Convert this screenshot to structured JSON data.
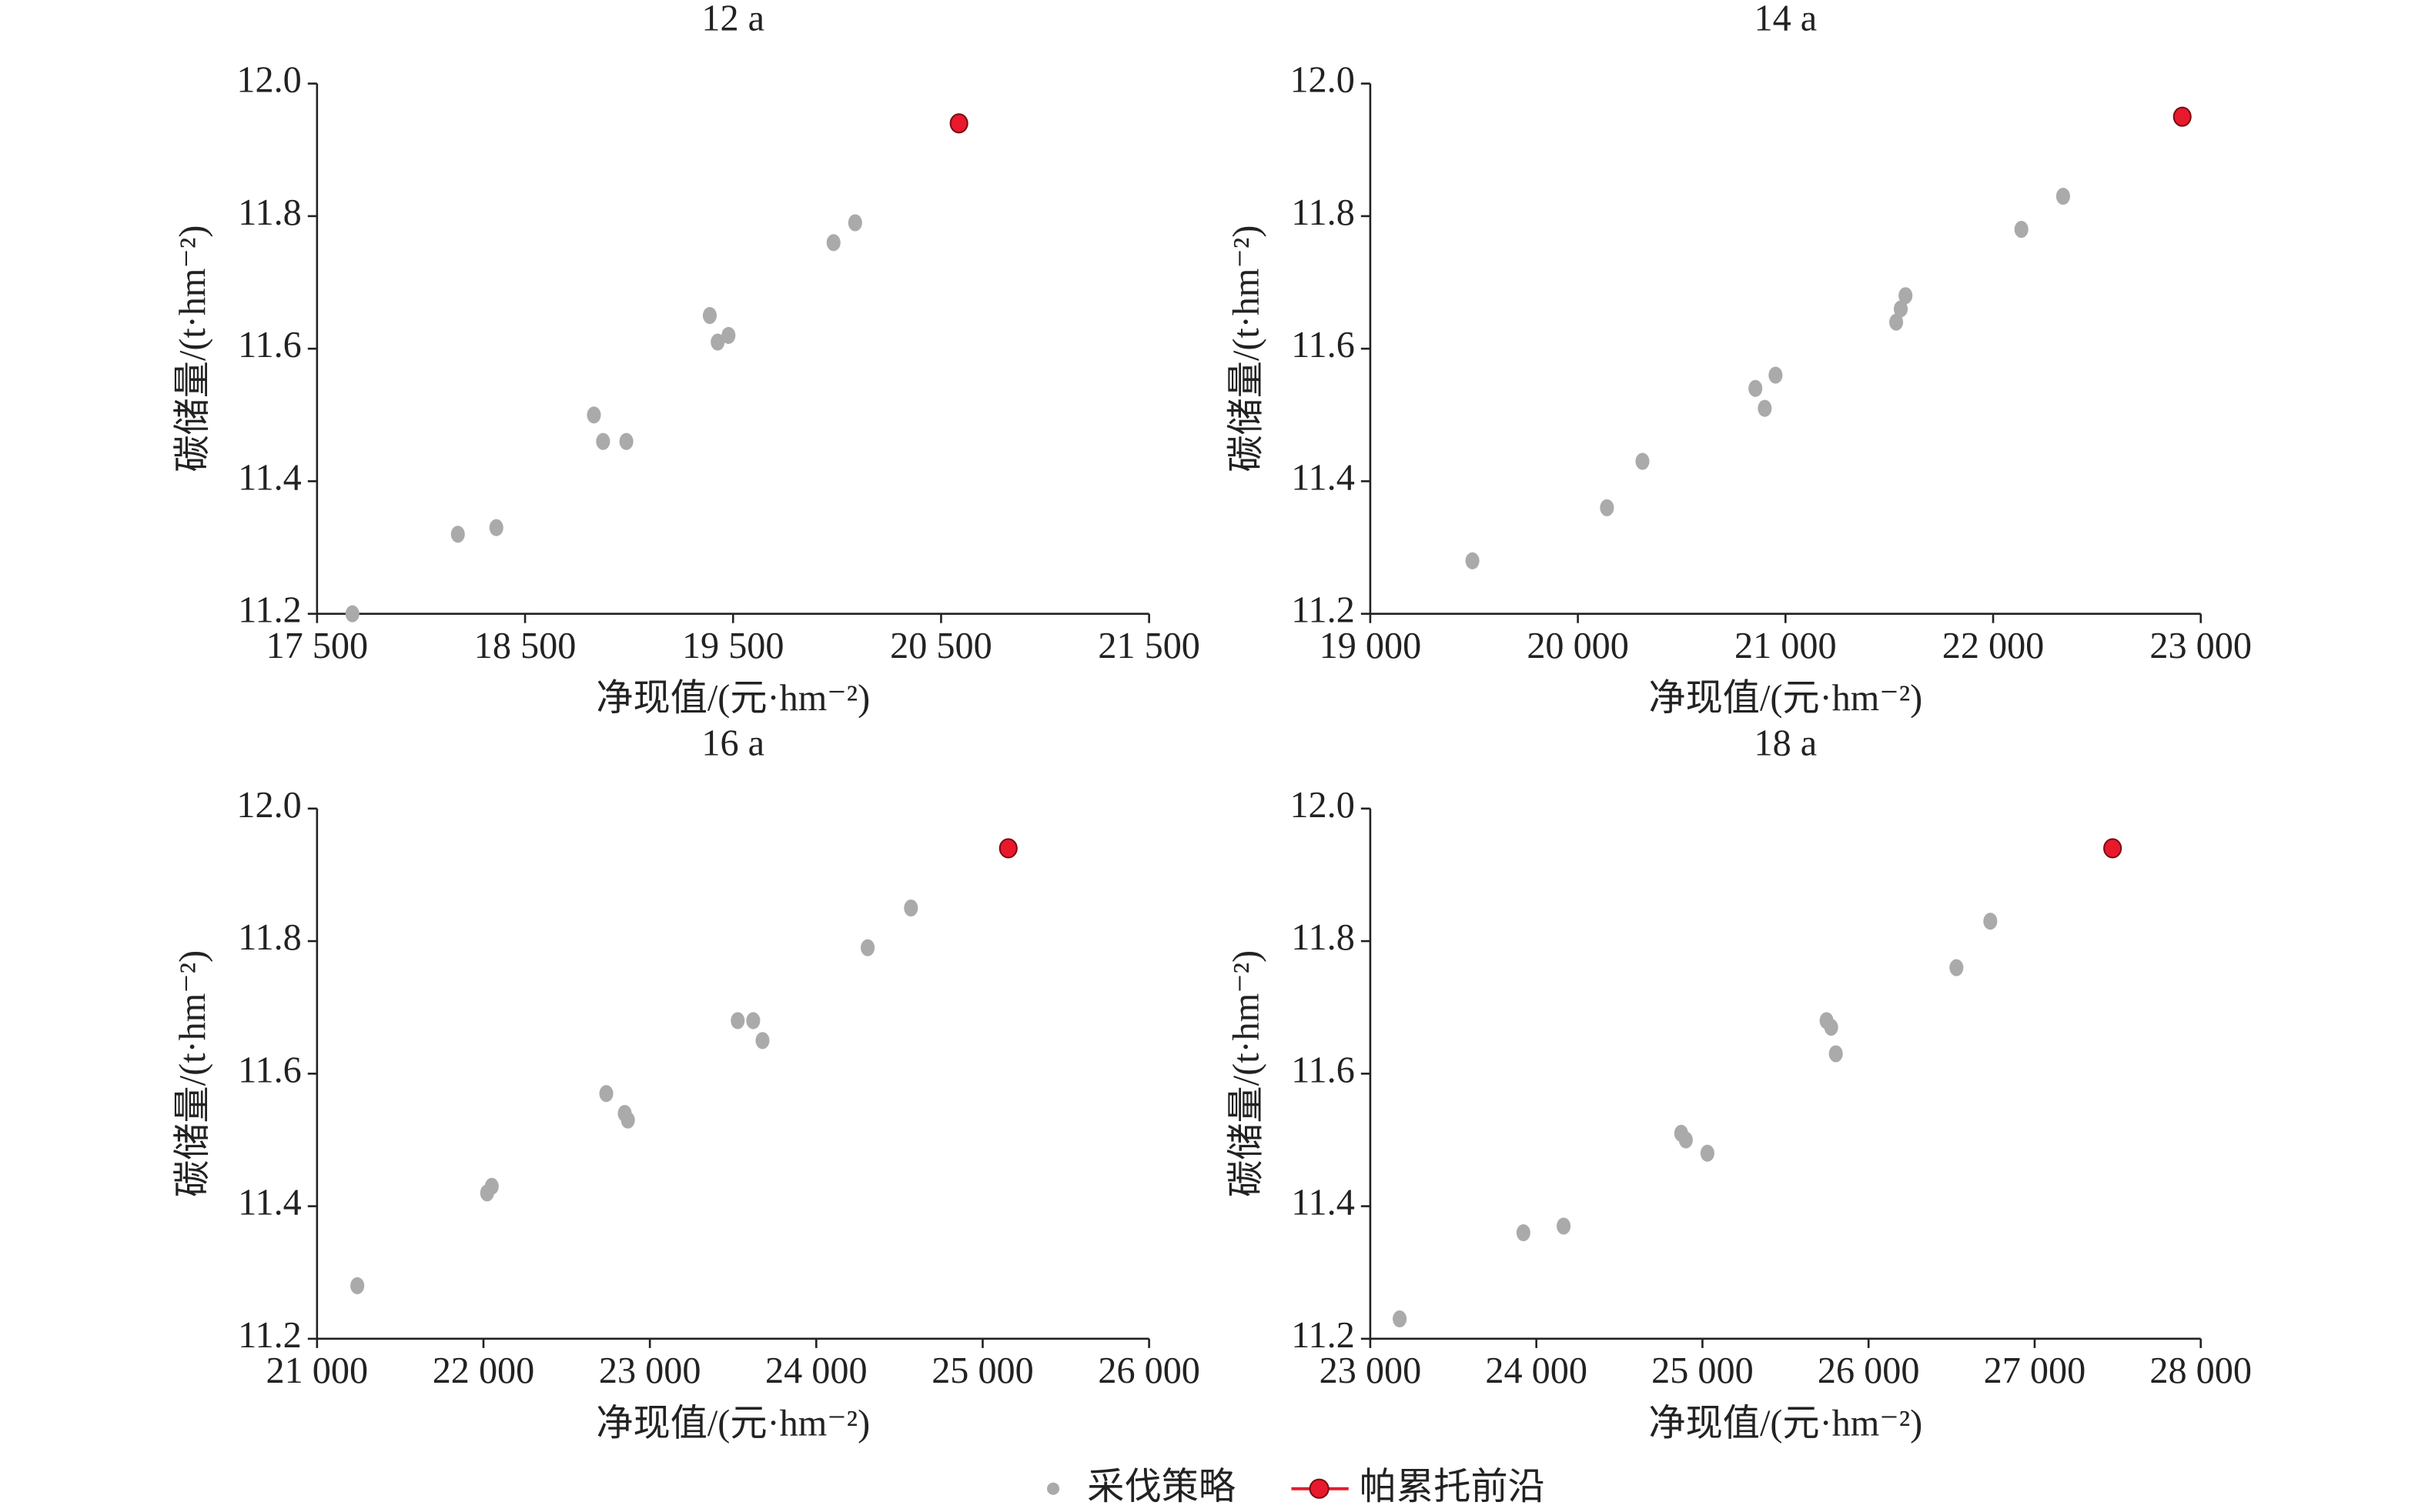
{
  "chart_data": [
    {
      "type": "scatter",
      "title": "12 a",
      "x_label": "净现值/(元·hm⁻²)",
      "y_label": "碳储量/(t·hm⁻²)",
      "xlim": [
        17500,
        21500
      ],
      "xticks": [
        {
          "value": 17500,
          "label": "17 500"
        },
        {
          "value": 18500,
          "label": "18 500"
        },
        {
          "value": 19500,
          "label": "19 500"
        },
        {
          "value": 20500,
          "label": "20 500"
        },
        {
          "value": 21500,
          "label": "21 500"
        }
      ],
      "ylim": [
        11.2,
        12.0
      ],
      "yticks": [
        11.2,
        11.4,
        11.6,
        11.8,
        {
          "value": 12.0,
          "label": "12.0"
        }
      ],
      "series": [
        {
          "name": "采伐策略",
          "color": "#aaaaaa",
          "x": [
            17670,
            18177,
            18362,
            18831,
            18875,
            18987,
            19388,
            19426,
            19478,
            19983,
            20087
          ],
          "values": [
            11.2,
            11.32,
            11.33,
            11.5,
            11.46,
            11.46,
            11.65,
            11.61,
            11.62,
            11.76,
            11.79
          ]
        },
        {
          "name": "帕累托前沿",
          "color": "#e8192c",
          "x": [
            20586
          ],
          "values": [
            11.94
          ]
        }
      ]
    },
    {
      "type": "scatter",
      "title": "14 a",
      "x_label": "净现值/(元·hm⁻²)",
      "y_label": "碳储量/(t·hm⁻²)",
      "xlim": [
        19000,
        23000
      ],
      "xticks": [
        {
          "value": 19000,
          "label": "19 000"
        },
        {
          "value": 20000,
          "label": "20 000"
        },
        {
          "value": 21000,
          "label": "21 000"
        },
        {
          "value": 22000,
          "label": "22 000"
        },
        {
          "value": 23000,
          "label": "23 000"
        }
      ],
      "ylim": [
        11.2,
        12.0
      ],
      "yticks": [
        11.2,
        11.4,
        11.6,
        11.8,
        {
          "value": 12.0,
          "label": "12.0"
        }
      ],
      "series": [
        {
          "name": "采伐策略",
          "color": "#aaaaaa",
          "x": [
            19492,
            20140,
            20311,
            20855,
            20900,
            20952,
            21533,
            21555,
            21578,
            22136,
            22337
          ],
          "values": [
            11.28,
            11.36,
            11.43,
            11.54,
            11.51,
            11.56,
            11.64,
            11.66,
            11.68,
            11.78,
            11.83
          ]
        },
        {
          "name": "帕累托前沿",
          "color": "#e8192c",
          "x": [
            22911
          ],
          "values": [
            11.95
          ]
        }
      ]
    },
    {
      "type": "scatter",
      "title": "16 a",
      "x_label": "净现值/(元·hm⁻²)",
      "y_label": "碳储量/(t·hm⁻²)",
      "xlim": [
        21000,
        26000
      ],
      "xticks": [
        {
          "value": 21000,
          "label": "21 000"
        },
        {
          "value": 22000,
          "label": "22 000"
        },
        {
          "value": 23000,
          "label": "23 000"
        },
        {
          "value": 24000,
          "label": "24 000"
        },
        {
          "value": 25000,
          "label": "25 000"
        },
        {
          "value": 26000,
          "label": "26 000"
        }
      ],
      "ylim": [
        11.2,
        12.0
      ],
      "yticks": [
        11.2,
        11.4,
        11.6,
        11.8,
        {
          "value": 12.0,
          "label": "12.0"
        }
      ],
      "series": [
        {
          "name": "采伐策略",
          "color": "#aaaaaa",
          "x": [
            21242,
            22022,
            22050,
            22738,
            22849,
            22868,
            23528,
            23621,
            23677,
            24309,
            24569
          ],
          "values": [
            11.28,
            11.42,
            11.43,
            11.57,
            11.54,
            11.53,
            11.68,
            11.68,
            11.65,
            11.79,
            11.85
          ]
        },
        {
          "name": "帕累托前沿",
          "color": "#e8192c",
          "x": [
            25154
          ],
          "values": [
            11.94
          ]
        }
      ]
    },
    {
      "type": "scatter",
      "title": "18 a",
      "x_label": "净现值/(元·hm⁻²)",
      "y_label": "碳储量/(t·hm⁻²)",
      "xlim": [
        23000,
        28000
      ],
      "xticks": [
        {
          "value": 23000,
          "label": "23 000"
        },
        {
          "value": 24000,
          "label": "24 000"
        },
        {
          "value": 25000,
          "label": "25 000"
        },
        {
          "value": 26000,
          "label": "26 000"
        },
        {
          "value": 27000,
          "label": "27 000"
        },
        {
          "value": 28000,
          "label": "28 000"
        }
      ],
      "ylim": [
        11.2,
        12.0
      ],
      "yticks": [
        11.2,
        11.4,
        11.6,
        11.8,
        {
          "value": 12.0,
          "label": "12.0"
        }
      ],
      "series": [
        {
          "name": "采伐策略",
          "color": "#aaaaaa",
          "x": [
            23177,
            23922,
            24164,
            24872,
            24900,
            25030,
            25747,
            25775,
            25803,
            26529,
            26733
          ],
          "values": [
            11.23,
            11.36,
            11.37,
            11.51,
            11.5,
            11.48,
            11.68,
            11.67,
            11.63,
            11.76,
            11.83
          ]
        },
        {
          "name": "帕累托前沿",
          "color": "#e8192c",
          "x": [
            27469
          ],
          "values": [
            11.94
          ]
        }
      ]
    }
  ]
}
